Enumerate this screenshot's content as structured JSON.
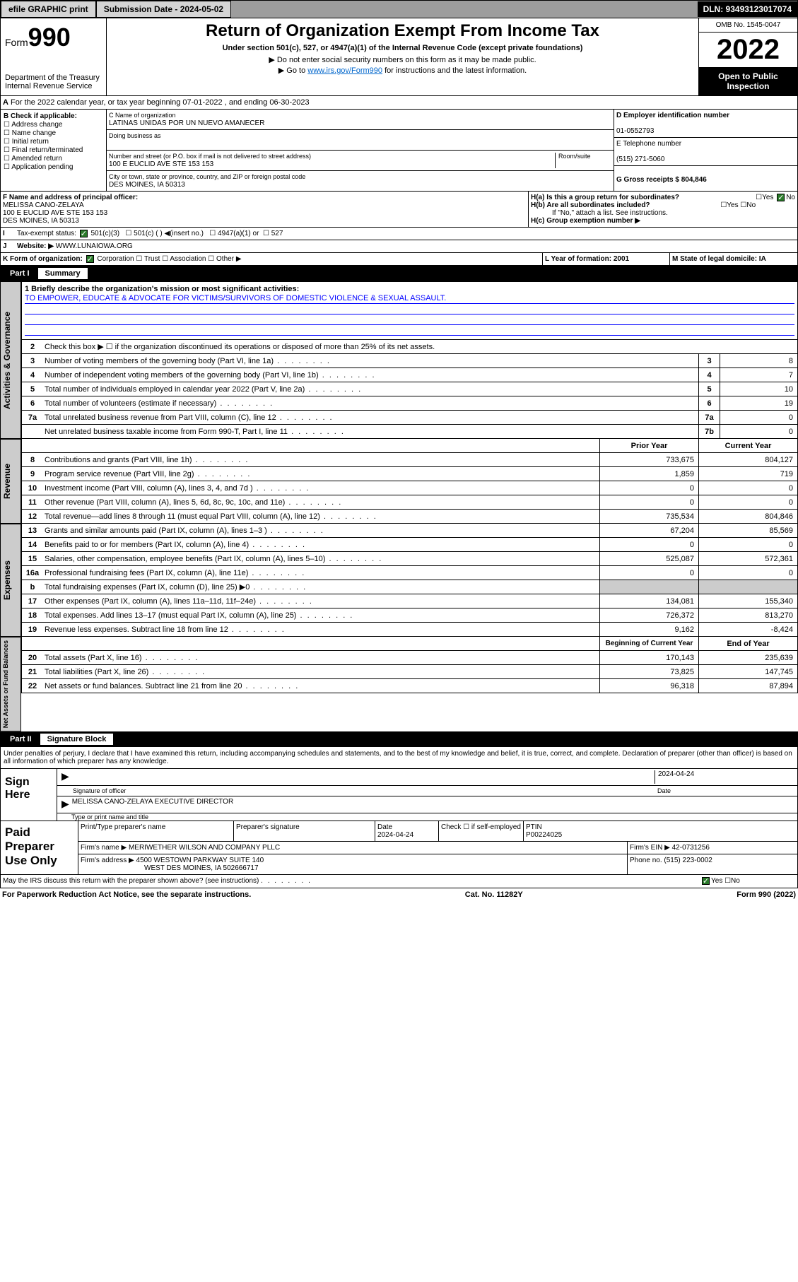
{
  "topbar": {
    "efile": "efile GRAPHIC print",
    "sub_lbl": "Submission Date - 2024-05-02",
    "dln": "DLN: 93493123017074"
  },
  "header": {
    "form": "Form",
    "form_no": "990",
    "dept": "Department of the Treasury",
    "irs": "Internal Revenue Service",
    "title": "Return of Organization Exempt From Income Tax",
    "sub": "Under section 501(c), 527, or 4947(a)(1) of the Internal Revenue Code (except private foundations)",
    "note1": "▶ Do not enter social security numbers on this form as it may be made public.",
    "note2_pre": "▶ Go to ",
    "note2_link": "www.irs.gov/Form990",
    "note2_post": " for instructions and the latest information.",
    "omb": "OMB No. 1545-0047",
    "year": "2022",
    "open": "Open to Public Inspection"
  },
  "row_a": "For the 2022 calendar year, or tax year beginning 07-01-2022   , and ending 06-30-2023",
  "sec_b": {
    "hdr": "B Check if applicable:",
    "opts": [
      "Address change",
      "Name change",
      "Initial return",
      "Final return/terminated",
      "Amended return",
      "Application pending"
    ]
  },
  "sec_c": {
    "name_lbl": "C Name of organization",
    "name": "LATINAS UNIDAS POR UN NUEVO AMANECER",
    "dba_lbl": "Doing business as",
    "addr_lbl": "Number and street (or P.O. box if mail is not delivered to street address)",
    "room_lbl": "Room/suite",
    "addr": "100 E EUCLID AVE STE 153 153",
    "city_lbl": "City or town, state or province, country, and ZIP or foreign postal code",
    "city": "DES MOINES, IA  50313"
  },
  "sec_d": {
    "ein_lbl": "D Employer identification number",
    "ein": "01-0552793",
    "tel_lbl": "E Telephone number",
    "tel": "(515) 271-5060",
    "gross_lbl": "G Gross receipts $ 804,846"
  },
  "sec_f": {
    "lbl": "F  Name and address of principal officer:",
    "name": "MELISSA CANO-ZELAYA",
    "addr1": "100 E EUCLID AVE STE 153 153",
    "addr2": "DES MOINES, IA  50313"
  },
  "sec_h": {
    "ha": "H(a)  Is this a group return for subordinates?",
    "hb": "H(b)  Are all subordinates included?",
    "hb_note": "If \"No,\" attach a list. See instructions.",
    "hc": "H(c)  Group exemption number ▶"
  },
  "sec_i": {
    "lbl": "I",
    "txt": "Tax-exempt status:",
    "opts": [
      "501(c)(3)",
      "501(c) (  ) ◀(insert no.)",
      "4947(a)(1) or",
      "527"
    ]
  },
  "sec_j": {
    "lbl": "J",
    "txt": "Website: ▶",
    "val": "WWW.LUNAIOWA.ORG"
  },
  "sec_k": {
    "lbl": "K Form of organization:",
    "opts": [
      "Corporation",
      "Trust",
      "Association",
      "Other ▶"
    ]
  },
  "sec_l": {
    "lbl": "L Year of formation: 2001"
  },
  "sec_m": {
    "lbl": "M State of legal domicile: IA"
  },
  "part1": {
    "lbl": "Part I",
    "title": "Summary"
  },
  "mission": {
    "q": "1   Briefly describe the organization's mission or most significant activities:",
    "txt": "TO EMPOWER, EDUCATE & ADVOCATE FOR VICTIMS/SURVIVORS OF DOMESTIC VIOLENCE & SEXUAL ASSAULT."
  },
  "line2": "Check this box ▶ ☐  if the organization discontinued its operations or disposed of more than 25% of its net assets.",
  "vtabs": {
    "gov": "Activities & Governance",
    "rev": "Revenue",
    "exp": "Expenses",
    "net": "Net Assets or Fund Balances"
  },
  "gov_lines": [
    {
      "no": "3",
      "txt": "Number of voting members of the governing body (Part VI, line 1a)",
      "box": "3",
      "val": "8"
    },
    {
      "no": "4",
      "txt": "Number of independent voting members of the governing body (Part VI, line 1b)",
      "box": "4",
      "val": "7"
    },
    {
      "no": "5",
      "txt": "Total number of individuals employed in calendar year 2022 (Part V, line 2a)",
      "box": "5",
      "val": "10"
    },
    {
      "no": "6",
      "txt": "Total number of volunteers (estimate if necessary)",
      "box": "6",
      "val": "19"
    },
    {
      "no": "7a",
      "txt": "Total unrelated business revenue from Part VIII, column (C), line 12",
      "box": "7a",
      "val": "0"
    },
    {
      "no": "",
      "txt": "Net unrelated business taxable income from Form 990-T, Part I, line 11",
      "box": "7b",
      "val": "0"
    }
  ],
  "col_hdrs": {
    "prior": "Prior Year",
    "curr": "Current Year"
  },
  "rev_lines": [
    {
      "no": "8",
      "txt": "Contributions and grants (Part VIII, line 1h)",
      "p": "733,675",
      "c": "804,127"
    },
    {
      "no": "9",
      "txt": "Program service revenue (Part VIII, line 2g)",
      "p": "1,859",
      "c": "719"
    },
    {
      "no": "10",
      "txt": "Investment income (Part VIII, column (A), lines 3, 4, and 7d )",
      "p": "0",
      "c": "0"
    },
    {
      "no": "11",
      "txt": "Other revenue (Part VIII, column (A), lines 5, 6d, 8c, 9c, 10c, and 11e)",
      "p": "0",
      "c": "0"
    },
    {
      "no": "12",
      "txt": "Total revenue—add lines 8 through 11 (must equal Part VIII, column (A), line 12)",
      "p": "735,534",
      "c": "804,846"
    }
  ],
  "exp_lines": [
    {
      "no": "13",
      "txt": "Grants and similar amounts paid (Part IX, column (A), lines 1–3 )",
      "p": "67,204",
      "c": "85,569"
    },
    {
      "no": "14",
      "txt": "Benefits paid to or for members (Part IX, column (A), line 4)",
      "p": "0",
      "c": "0"
    },
    {
      "no": "15",
      "txt": "Salaries, other compensation, employee benefits (Part IX, column (A), lines 5–10)",
      "p": "525,087",
      "c": "572,361"
    },
    {
      "no": "16a",
      "txt": "Professional fundraising fees (Part IX, column (A), line 11e)",
      "p": "0",
      "c": "0"
    },
    {
      "no": "b",
      "txt": "Total fundraising expenses (Part IX, column (D), line 25) ▶0",
      "p": "",
      "c": "",
      "gray": true
    },
    {
      "no": "17",
      "txt": "Other expenses (Part IX, column (A), lines 11a–11d, 11f–24e)",
      "p": "134,081",
      "c": "155,340"
    },
    {
      "no": "18",
      "txt": "Total expenses. Add lines 13–17 (must equal Part IX, column (A), line 25)",
      "p": "726,372",
      "c": "813,270"
    },
    {
      "no": "19",
      "txt": "Revenue less expenses. Subtract line 18 from line 12",
      "p": "9,162",
      "c": "-8,424"
    }
  ],
  "net_hdr": {
    "p": "Beginning of Current Year",
    "c": "End of Year"
  },
  "net_lines": [
    {
      "no": "20",
      "txt": "Total assets (Part X, line 16)",
      "p": "170,143",
      "c": "235,639"
    },
    {
      "no": "21",
      "txt": "Total liabilities (Part X, line 26)",
      "p": "73,825",
      "c": "147,745"
    },
    {
      "no": "22",
      "txt": "Net assets or fund balances. Subtract line 21 from line 20",
      "p": "96,318",
      "c": "87,894"
    }
  ],
  "part2": {
    "lbl": "Part II",
    "title": "Signature Block"
  },
  "penalty": "Under penalties of perjury, I declare that I have examined this return, including accompanying schedules and statements, and to the best of my knowledge and belief, it is true, correct, and complete. Declaration of preparer (other than officer) is based on all information of which preparer has any knowledge.",
  "sign": {
    "lbl": "Sign Here",
    "sig_lbl": "Signature of officer",
    "date": "2024-04-24",
    "date_lbl": "Date",
    "name": "MELISSA CANO-ZELAYA  EXECUTIVE DIRECTOR",
    "name_lbl": "Type or print name and title"
  },
  "paid": {
    "lbl": "Paid Preparer Use Only",
    "hdrs": [
      "Print/Type preparer's name",
      "Preparer's signature",
      "Date",
      "",
      "PTIN"
    ],
    "date": "2024-04-24",
    "chk_lbl": "Check ☐ if self-employed",
    "ptin": "P00224025",
    "firm_lbl": "Firm's name     ▶",
    "firm": "MERIWETHER WILSON AND COMPANY PLLC",
    "ein_lbl": "Firm's EIN ▶",
    "ein": "42-0731256",
    "addr_lbl": "Firm's address ▶",
    "addr1": "4500 WESTOWN PARKWAY SUITE 140",
    "addr2": "WEST DES MOINES, IA  502666717",
    "ph_lbl": "Phone no.",
    "ph": "(515) 223-0002"
  },
  "discuss": "May the IRS discuss this return with the preparer shown above? (see instructions)",
  "footer": {
    "l": "For Paperwork Reduction Act Notice, see the separate instructions.",
    "m": "Cat. No. 11282Y",
    "r": "Form 990 (2022)"
  }
}
